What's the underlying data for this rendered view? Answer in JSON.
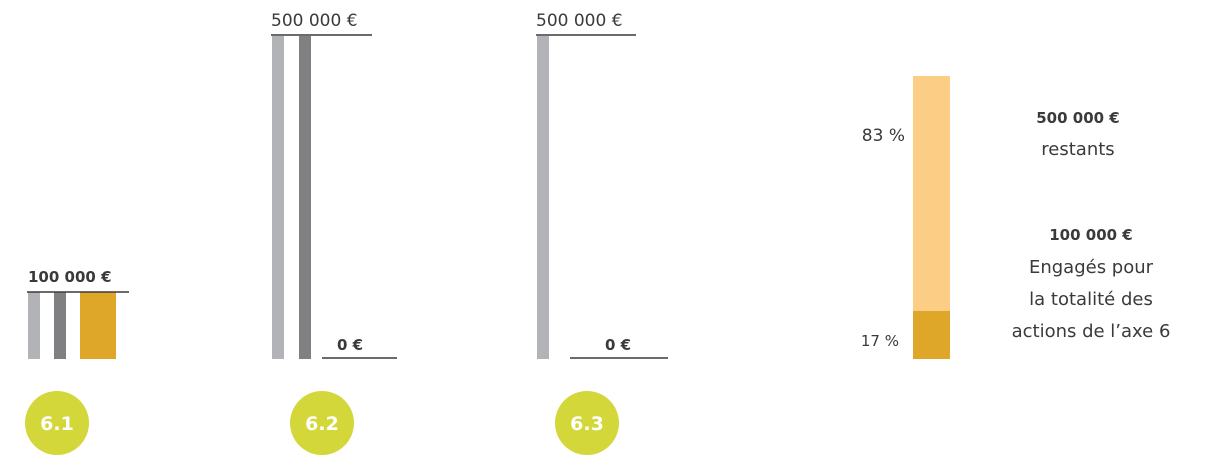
{
  "colors": {
    "light_grey": "#b2b3b6",
    "dark_grey": "#808083",
    "gold": "#dea72a",
    "peach": "#fbcd85",
    "lime": "#d4d73a",
    "text": "#3a3a3a"
  },
  "chart_data": [
    {
      "type": "bar",
      "id": "6.1",
      "badge": "6.1",
      "top_label": "100 000 €",
      "bottom_label": "",
      "ylim": [
        0,
        100000
      ],
      "series": [
        {
          "color": "#b2b3b6",
          "value": 100000
        },
        {
          "color": "#808083",
          "value": 100000
        },
        {
          "color": "#dea72a",
          "value": 100000
        }
      ]
    },
    {
      "type": "bar",
      "id": "6.2",
      "badge": "6.2",
      "top_label": "500 000 €",
      "bottom_label": "0 €",
      "ylim": [
        0,
        500000
      ],
      "series": [
        {
          "color": "#b2b3b6",
          "value": 500000
        },
        {
          "color": "#808083",
          "value": 500000
        },
        {
          "color": "#dea72a",
          "value": 0
        }
      ]
    },
    {
      "type": "bar",
      "id": "6.3",
      "badge": "6.3",
      "top_label": "500 000 €",
      "bottom_label": "0 €",
      "ylim": [
        0,
        500000
      ],
      "series": [
        {
          "color": "#b2b3b6",
          "value": 500000
        },
        {
          "color": "#dea72a",
          "value": 0
        }
      ]
    },
    {
      "type": "bar",
      "id": "total",
      "stacked": true,
      "segments": [
        {
          "pct_label": "17 %",
          "value": 17,
          "color": "#dea72a",
          "amount": "100 000 €",
          "caption": [
            "Engagés pour",
            "la totalité des",
            "actions de l’axe 6"
          ]
        },
        {
          "pct_label": "83 %",
          "value": 83,
          "color": "#fbcd85",
          "amount": "500 000 €",
          "caption": [
            "restants"
          ]
        }
      ]
    }
  ]
}
